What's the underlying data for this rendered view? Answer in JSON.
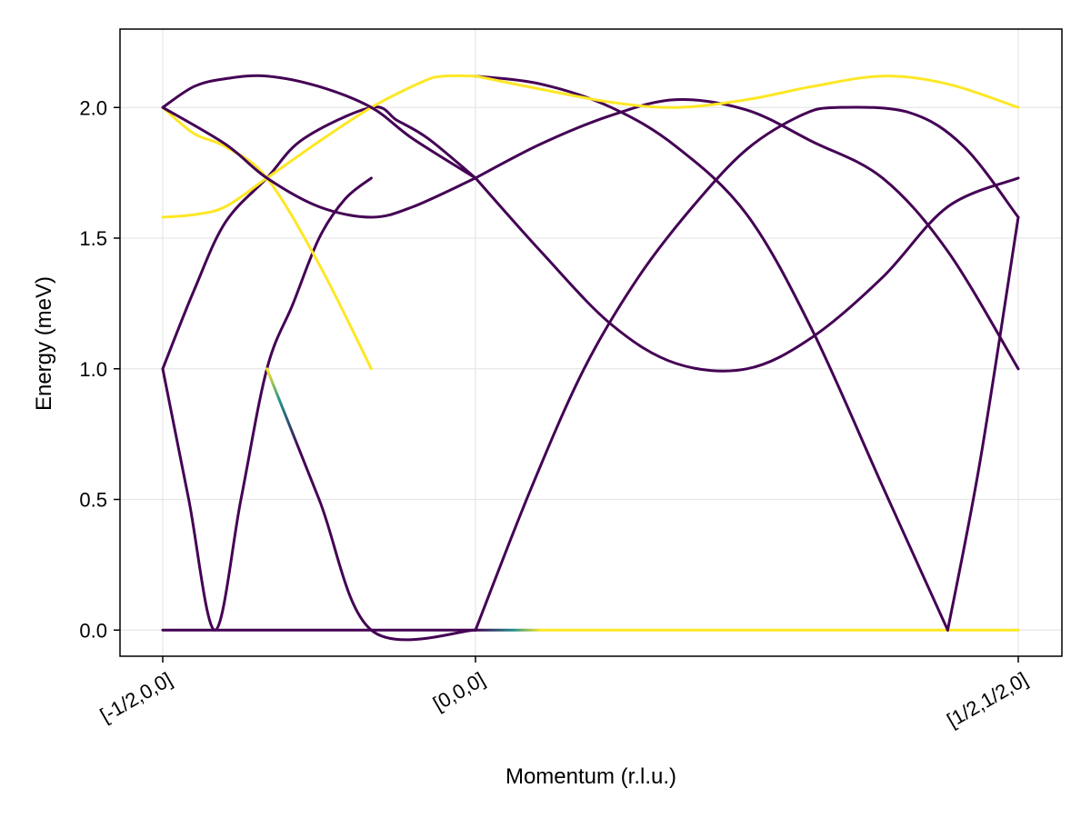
{
  "chart_data": {
    "type": "line",
    "title": "",
    "xlabel": "Momentum (r.l.u.)",
    "ylabel": "Energy (meV)",
    "x_ticks": [
      {
        "x": 0,
        "label": "[-1/2,0,0]"
      },
      {
        "x": 1,
        "label": "[0,0,0]"
      },
      {
        "x": 2,
        "label": "[1/2,1/2,0]"
      }
    ],
    "y_ticks": [
      "0.0",
      "0.5",
      "1.0",
      "1.5",
      "2.0"
    ],
    "ylim": [
      -0.1,
      2.3
    ],
    "grid": true,
    "colormap": "viridis",
    "colors": {
      "low": "#440154",
      "mid": "#21918c",
      "high": "#fde725",
      "grid": "#e6e6e6",
      "frame": "#000000"
    },
    "note": "x between ticks is path parameter; segment 1 from [-1/2,0,0] to [0,0,0], segment 2 from [0,0,0] to [1/2,1/2,0]",
    "series": [
      {
        "intensity": "low",
        "points": [
          [
            0,
            0
          ],
          [
            1,
            0
          ]
        ]
      },
      {
        "intensity": "mixed",
        "points": [
          [
            1,
            0
          ],
          [
            2,
            0
          ]
        ],
        "color_stops": [
          [
            1.0,
            "low"
          ],
          [
            1.07,
            "mid"
          ],
          [
            1.12,
            "high"
          ],
          [
            2,
            "high"
          ]
        ]
      },
      {
        "intensity": "low",
        "points": [
          [
            0,
            1.0
          ],
          [
            0.083,
            0.5
          ],
          [
            0.167,
            0.0
          ],
          [
            0.25,
            0.5
          ],
          [
            0.333,
            1.0
          ],
          [
            0.417,
            1.25
          ],
          [
            0.5,
            1.5
          ],
          [
            0.583,
            1.65
          ],
          [
            0.667,
            1.73
          ]
        ]
      },
      {
        "intensity": "low",
        "points": [
          [
            0,
            1.0
          ],
          [
            0.1,
            1.3
          ],
          [
            0.2,
            1.56
          ],
          [
            0.333,
            1.73
          ],
          [
            0.45,
            1.88
          ],
          [
            0.667,
            2.0
          ],
          [
            0.75,
            1.95
          ],
          [
            0.85,
            1.88
          ],
          [
            1.0,
            1.73
          ]
        ]
      },
      {
        "intensity": "mixed",
        "points": [
          [
            0.333,
            1.0
          ],
          [
            0.5,
            0.5
          ],
          [
            0.667,
            0.0
          ],
          [
            1.0,
            0.0
          ]
        ],
        "color_stops": [
          [
            0.333,
            "high"
          ],
          [
            0.4,
            "mid"
          ],
          [
            0.5,
            "low"
          ]
        ]
      },
      {
        "intensity": "high",
        "points": [
          [
            0,
            2.0
          ],
          [
            0.1,
            1.9
          ],
          [
            0.2,
            1.85
          ],
          [
            0.333,
            1.73
          ],
          [
            0.5,
            1.4
          ],
          [
            0.667,
            1.0
          ]
        ]
      },
      {
        "intensity": "high",
        "points": [
          [
            0,
            1.58
          ],
          [
            0.1,
            1.59
          ],
          [
            0.2,
            1.62
          ],
          [
            0.333,
            1.73
          ],
          [
            0.5,
            1.87
          ],
          [
            0.667,
            2.0
          ],
          [
            0.833,
            2.1
          ],
          [
            0.9,
            2.12
          ],
          [
            1.0,
            2.12
          ]
        ]
      },
      {
        "intensity": "low",
        "points": [
          [
            0,
            2.0
          ],
          [
            0.1,
            2.08
          ],
          [
            0.2,
            2.11
          ],
          [
            0.333,
            2.12
          ],
          [
            0.5,
            2.08
          ],
          [
            0.667,
            2.0
          ],
          [
            0.8,
            1.88
          ],
          [
            1.0,
            1.73
          ]
        ]
      },
      {
        "intensity": "low",
        "points": [
          [
            0,
            2.0
          ],
          [
            0.2,
            1.86
          ],
          [
            0.333,
            1.73
          ],
          [
            0.5,
            1.62
          ],
          [
            0.667,
            1.58
          ],
          [
            0.8,
            1.62
          ],
          [
            1.0,
            1.73
          ]
        ]
      },
      {
        "intensity": "low",
        "points": [
          [
            1.0,
            0.0
          ],
          [
            1.1,
            0.53
          ],
          [
            1.2,
            1.0
          ],
          [
            1.3,
            1.35
          ],
          [
            1.4,
            1.62
          ],
          [
            1.5,
            1.84
          ],
          [
            1.6,
            1.97
          ],
          [
            1.667,
            2.0
          ],
          [
            1.8,
            1.98
          ],
          [
            1.9,
            1.85
          ],
          [
            2.0,
            1.58
          ]
        ]
      },
      {
        "intensity": "low",
        "points": [
          [
            1.0,
            1.73
          ],
          [
            1.12,
            1.86
          ],
          [
            1.25,
            1.97
          ],
          [
            1.37,
            2.03
          ],
          [
            1.5,
            1.99
          ],
          [
            1.62,
            1.87
          ],
          [
            1.75,
            1.73
          ],
          [
            1.87,
            1.45
          ],
          [
            2.0,
            1.0
          ]
        ]
      },
      {
        "intensity": "low",
        "points": [
          [
            1.0,
            1.73
          ],
          [
            1.12,
            1.45
          ],
          [
            1.25,
            1.17
          ],
          [
            1.37,
            1.02
          ],
          [
            1.5,
            1.0
          ],
          [
            1.62,
            1.12
          ],
          [
            1.75,
            1.35
          ],
          [
            1.87,
            1.62
          ],
          [
            2.0,
            1.73
          ]
        ]
      },
      {
        "intensity": "low",
        "points": [
          [
            1.0,
            2.12
          ],
          [
            1.12,
            2.09
          ],
          [
            1.25,
            2.0
          ],
          [
            1.37,
            1.85
          ],
          [
            1.5,
            1.59
          ],
          [
            1.62,
            1.15
          ],
          [
            1.75,
            0.55
          ],
          [
            1.87,
            0.0
          ]
        ]
      },
      {
        "intensity": "low",
        "points": [
          [
            1.87,
            0.0
          ],
          [
            1.93,
            0.65
          ],
          [
            2.0,
            1.58
          ]
        ]
      },
      {
        "intensity": "high",
        "points": [
          [
            1.0,
            2.12
          ],
          [
            1.12,
            2.07
          ],
          [
            1.25,
            2.02
          ],
          [
            1.37,
            2.0
          ],
          [
            1.5,
            2.03
          ],
          [
            1.62,
            2.08
          ],
          [
            1.75,
            2.12
          ],
          [
            1.87,
            2.09
          ],
          [
            2.0,
            2.0
          ]
        ]
      }
    ]
  }
}
